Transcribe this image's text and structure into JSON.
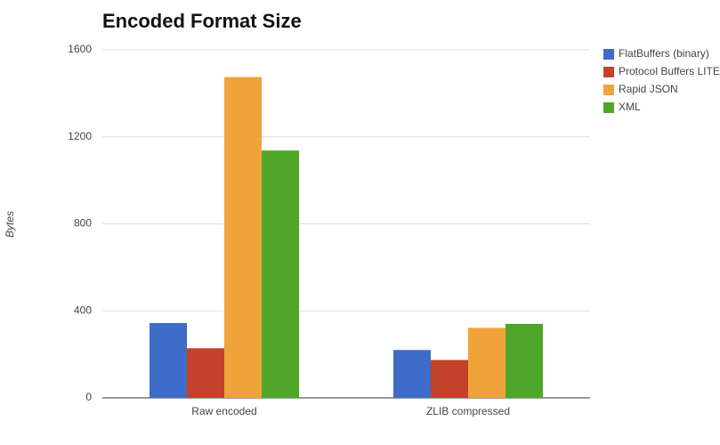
{
  "chart_data": {
    "type": "bar",
    "title": "Encoded Format Size",
    "y_label": "Bytes",
    "categories": [
      "Raw encoded",
      "ZLIB compressed"
    ],
    "series": [
      {
        "name": "FlatBuffers (binary)",
        "color": "#3d6cc9",
        "values": [
          344,
          220
        ]
      },
      {
        "name": "Protocol Buffers LITE",
        "color": "#c4412a",
        "values": [
          228,
          174
        ]
      },
      {
        "name": "Rapid JSON",
        "color": "#f0a33a",
        "values": [
          1475,
          322
        ]
      },
      {
        "name": "XML",
        "color": "#4ea72a",
        "values": [
          1137,
          340
        ]
      }
    ],
    "ylim": [
      0,
      1600
    ],
    "yticks": [
      0,
      400,
      800,
      1200,
      1600
    ],
    "grid": true,
    "legend": "right"
  }
}
